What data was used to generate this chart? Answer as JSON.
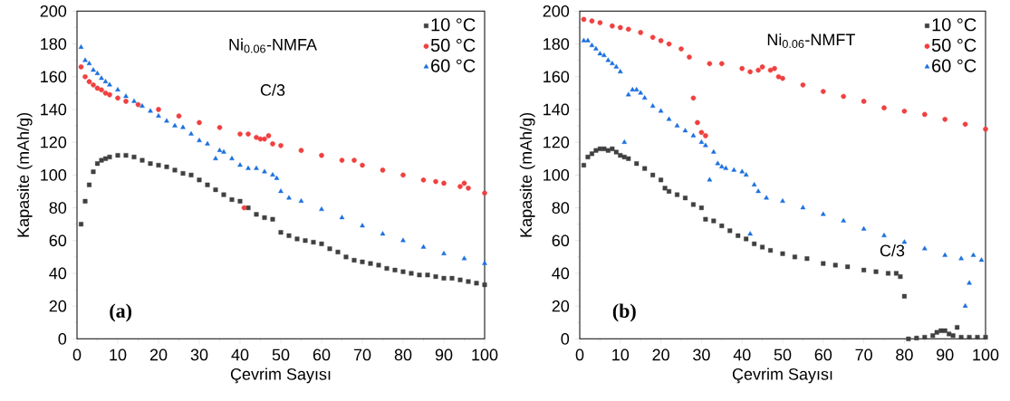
{
  "chart_data": [
    {
      "type": "scatter",
      "xlabel": "Çevrim Sayısı",
      "ylabel": "Kapasite (mAh/g)",
      "xlim": [
        0,
        100
      ],
      "ylim": [
        0,
        200
      ],
      "xticks": [
        0,
        10,
        20,
        30,
        40,
        50,
        60,
        70,
        80,
        90,
        100
      ],
      "yticks": [
        0,
        20,
        40,
        60,
        80,
        100,
        120,
        140,
        160,
        180,
        200
      ],
      "legend": "top right",
      "annotations": [
        "Ni$_{0.06}$-NMFA",
        "C/3",
        "(a)"
      ],
      "series": [
        {
          "name": "10 °C",
          "color": "#404040",
          "marker": "square",
          "x": [
            1,
            2,
            3,
            4,
            5,
            6,
            7,
            8,
            10,
            12,
            14,
            16,
            18,
            20,
            22,
            24,
            26,
            28,
            30,
            32,
            34,
            36,
            38,
            40,
            42,
            44,
            46,
            48,
            50,
            52,
            54,
            56,
            58,
            60,
            62,
            64,
            66,
            68,
            70,
            72,
            74,
            76,
            78,
            80,
            82,
            84,
            86,
            88,
            90,
            92,
            94,
            96,
            98,
            100
          ],
          "values": [
            70,
            84,
            94,
            102,
            107,
            109,
            110,
            111,
            112,
            112,
            111,
            109,
            107,
            106,
            105,
            103,
            101,
            100,
            97,
            94,
            91,
            88,
            85,
            84,
            80,
            76,
            74,
            73,
            65,
            63,
            61,
            60,
            59,
            58,
            55,
            53,
            50,
            48,
            47,
            46,
            45,
            43,
            42,
            41,
            40,
            39,
            39,
            38,
            37,
            37,
            36,
            35,
            34,
            33
          ]
        },
        {
          "name": "50 °C",
          "color": "#f04040",
          "marker": "circle",
          "x": [
            1,
            2,
            3,
            4,
            5,
            6,
            7,
            8,
            10,
            12,
            15,
            20,
            25,
            30,
            35,
            40,
            41,
            42,
            44,
            45,
            46,
            47,
            48,
            50,
            55,
            60,
            65,
            68,
            70,
            75,
            80,
            85,
            88,
            90,
            94,
            95,
            96,
            100
          ],
          "values": [
            166,
            160,
            157,
            155,
            153,
            152,
            150,
            149,
            147,
            145,
            143,
            140,
            136,
            132,
            129,
            125,
            80,
            125,
            123,
            122,
            122,
            124,
            119,
            118,
            115,
            112,
            109,
            109,
            106,
            103,
            100,
            97,
            96,
            95,
            93,
            95,
            92,
            89
          ]
        },
        {
          "name": "60 °C",
          "color": "#1a6fdf",
          "marker": "triangle",
          "x": [
            1,
            2,
            3,
            4,
            5,
            6,
            7,
            8,
            10,
            12,
            14,
            16,
            18,
            20,
            22,
            24,
            26,
            28,
            30,
            32,
            34,
            35,
            36,
            38,
            40,
            42,
            44,
            46,
            48,
            49,
            50,
            52,
            55,
            60,
            65,
            70,
            75,
            80,
            85,
            90,
            95,
            100
          ],
          "values": [
            178,
            170,
            168,
            164,
            162,
            159,
            157,
            155,
            152,
            148,
            145,
            142,
            139,
            136,
            133,
            130,
            129,
            125,
            121,
            119,
            110,
            115,
            114,
            110,
            106,
            104,
            104,
            102,
            100,
            98,
            90,
            86,
            84,
            79,
            74,
            69,
            64,
            60,
            56,
            52,
            49,
            46
          ]
        }
      ]
    },
    {
      "type": "scatter",
      "xlabel": "Çevrim Sayısı",
      "ylabel": "Kapasite (mAh/g)",
      "xlim": [
        0,
        100
      ],
      "ylim": [
        0,
        200
      ],
      "xticks": [
        0,
        10,
        20,
        30,
        40,
        50,
        60,
        70,
        80,
        90,
        100
      ],
      "yticks": [
        0,
        20,
        40,
        60,
        80,
        100,
        120,
        140,
        160,
        180,
        200
      ],
      "legend": "top right",
      "annotations": [
        "Ni$_{0.06}$-NMFT",
        "C/3",
        "(b)"
      ],
      "series": [
        {
          "name": "10 °C",
          "color": "#404040",
          "marker": "square",
          "x": [
            1,
            2,
            3,
            4,
            5,
            6,
            7,
            8,
            9,
            10,
            11,
            12,
            14,
            16,
            18,
            20,
            21,
            22,
            24,
            26,
            28,
            30,
            31,
            33,
            35,
            37,
            39,
            41,
            43,
            45,
            47,
            50,
            53,
            56,
            60,
            63,
            66,
            70,
            73,
            76,
            78,
            79,
            80,
            81,
            83,
            85,
            87,
            88,
            89,
            90,
            91,
            92,
            93,
            94,
            96,
            98,
            100
          ],
          "values": [
            106,
            111,
            113,
            115,
            116,
            116,
            115,
            116,
            114,
            112,
            111,
            110,
            107,
            104,
            100,
            97,
            92,
            90,
            88,
            86,
            82,
            80,
            73,
            72,
            69,
            66,
            63,
            61,
            58,
            56,
            54,
            52,
            50,
            49,
            46,
            45,
            44,
            42,
            41,
            40,
            40,
            38,
            26,
            0,
            0.5,
            1,
            2,
            4,
            5,
            5,
            3,
            2,
            7,
            1,
            1,
            1,
            1
          ]
        },
        {
          "name": "50 °C",
          "color": "#f04040",
          "marker": "circle",
          "x": [
            1,
            3,
            5,
            8,
            10,
            12,
            15,
            18,
            20,
            22,
            25,
            27,
            28,
            29,
            30,
            31,
            32,
            35,
            40,
            42,
            44,
            45,
            47,
            48,
            49,
            50,
            55,
            60,
            65,
            70,
            75,
            80,
            85,
            90,
            95,
            100
          ],
          "values": [
            195,
            194,
            193,
            191,
            190,
            189,
            187,
            184,
            182,
            180,
            177,
            172,
            147,
            132,
            126,
            124,
            168,
            168,
            165,
            163,
            164,
            166,
            164,
            165,
            160,
            159,
            155,
            151,
            148,
            145,
            141,
            139,
            137,
            134,
            131,
            128
          ]
        },
        {
          "name": "60 °C",
          "color": "#1a6fdf",
          "marker": "triangle",
          "x": [
            1,
            2,
            3,
            4,
            5,
            6,
            7,
            8,
            9,
            10,
            11,
            12,
            13,
            14,
            15,
            16,
            18,
            20,
            22,
            24,
            26,
            28,
            30,
            31,
            32,
            33,
            34,
            35,
            36,
            38,
            40,
            41,
            42,
            43,
            44,
            46,
            50,
            55,
            60,
            65,
            70,
            75,
            80,
            85,
            90,
            94,
            95,
            96,
            97,
            99
          ],
          "values": [
            182,
            182,
            179,
            177,
            174,
            173,
            170,
            168,
            166,
            163,
            120,
            149,
            152,
            152,
            150,
            147,
            142,
            139,
            134,
            130,
            127,
            124,
            120,
            118,
            97,
            114,
            107,
            105,
            104,
            103,
            102,
            100,
            64,
            94,
            90,
            86,
            84,
            80,
            76,
            72,
            67,
            63,
            59,
            55,
            51,
            49,
            20,
            34,
            51,
            48
          ]
        }
      ]
    }
  ]
}
